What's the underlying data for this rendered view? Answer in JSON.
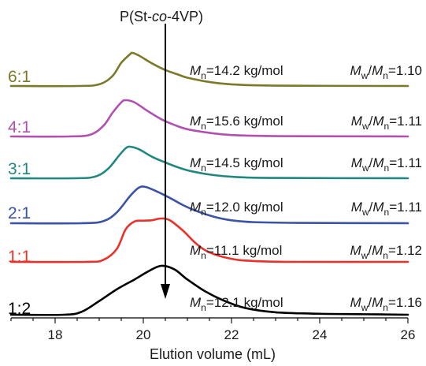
{
  "chart_data": {
    "type": "line",
    "title": "P(St-co-4VP)",
    "title_parts": [
      "P(St-",
      "co",
      "-4VP)"
    ],
    "xlabel": "Elution volume (mL)",
    "ylabel": "",
    "xlim": [
      17,
      26
    ],
    "xticks": [
      18,
      20,
      22,
      24,
      26
    ],
    "marker_x": 20.5,
    "series": [
      {
        "name": "6:1",
        "color": "#7a7a2a",
        "stats": {
          "mn": "=14.2 kg/mol",
          "pdi": "=1.10"
        },
        "x": [
          17.0,
          18.5,
          19.0,
          19.3,
          19.5,
          19.7,
          19.75,
          19.9,
          20.2,
          20.5,
          20.8,
          21.0,
          21.5,
          22.0,
          23.0,
          26.0
        ],
        "y": [
          0.0,
          0.0,
          0.05,
          0.3,
          0.7,
          0.96,
          1.0,
          0.92,
          0.68,
          0.48,
          0.34,
          0.25,
          0.12,
          0.05,
          0.01,
          0.0
        ]
      },
      {
        "name": "4:1",
        "color": "#b051b0",
        "stats": {
          "mn": "=15.6 kg/mol",
          "pdi": "=1.11"
        },
        "x": [
          17.0,
          18.3,
          18.8,
          19.1,
          19.3,
          19.5,
          19.6,
          19.8,
          20.1,
          20.4,
          20.7,
          21.0,
          21.5,
          22.0,
          23.0,
          26.0
        ],
        "y": [
          0.0,
          0.0,
          0.05,
          0.3,
          0.65,
          0.94,
          1.0,
          0.94,
          0.7,
          0.48,
          0.32,
          0.2,
          0.1,
          0.04,
          0.01,
          0.0
        ]
      },
      {
        "name": "3:1",
        "color": "#22877f",
        "stats": {
          "mn": "=14.5 kg/mol",
          "pdi": "=1.11"
        },
        "x": [
          17.0,
          18.4,
          18.9,
          19.2,
          19.45,
          19.6,
          19.7,
          19.9,
          20.2,
          20.5,
          20.8,
          21.1,
          21.6,
          22.1,
          23.0,
          26.0
        ],
        "y": [
          0.0,
          0.0,
          0.05,
          0.3,
          0.72,
          0.95,
          1.0,
          0.92,
          0.68,
          0.5,
          0.34,
          0.22,
          0.1,
          0.04,
          0.01,
          0.0
        ]
      },
      {
        "name": "2:1",
        "color": "#3b52a5",
        "stats": {
          "mn": "=12.0 kg/mol",
          "pdi": "=1.11"
        },
        "x": [
          17.0,
          18.6,
          19.1,
          19.4,
          19.7,
          19.9,
          20.05,
          20.3,
          20.6,
          20.9,
          21.2,
          21.6,
          22.0,
          22.5,
          23.5,
          26.0
        ],
        "y": [
          0.0,
          0.0,
          0.06,
          0.3,
          0.75,
          0.98,
          1.0,
          0.88,
          0.7,
          0.5,
          0.34,
          0.18,
          0.08,
          0.03,
          0.01,
          0.0
        ]
      },
      {
        "name": "1:1",
        "color": "#e8322b",
        "stats": {
          "mn": "=11.1 kg/mol",
          "pdi": "=1.12"
        },
        "x": [
          17.0,
          18.7,
          19.1,
          19.4,
          19.6,
          19.8,
          20.0,
          20.2,
          20.4,
          20.6,
          20.9,
          21.2,
          21.5,
          22.0,
          22.5,
          23.5,
          26.0
        ],
        "y": [
          0.0,
          0.0,
          0.05,
          0.3,
          0.75,
          0.93,
          0.95,
          0.96,
          1.0,
          0.96,
          0.72,
          0.42,
          0.22,
          0.07,
          0.02,
          0.0,
          0.0
        ]
      },
      {
        "name": "1:2",
        "color": "#000000",
        "stats": {
          "mn": "=12.1 kg/mol",
          "pdi": "=1.16"
        },
        "x": [
          17.0,
          18.2,
          18.6,
          19.0,
          19.4,
          19.8,
          20.1,
          20.4,
          20.7,
          21.0,
          21.4,
          21.8,
          22.3,
          23.0,
          24.0,
          25.0,
          26.0
        ],
        "y": [
          0.0,
          0.0,
          0.06,
          0.28,
          0.52,
          0.72,
          0.88,
          1.0,
          0.93,
          0.72,
          0.48,
          0.3,
          0.14,
          0.05,
          0.02,
          0.01,
          0.0
        ]
      }
    ]
  }
}
